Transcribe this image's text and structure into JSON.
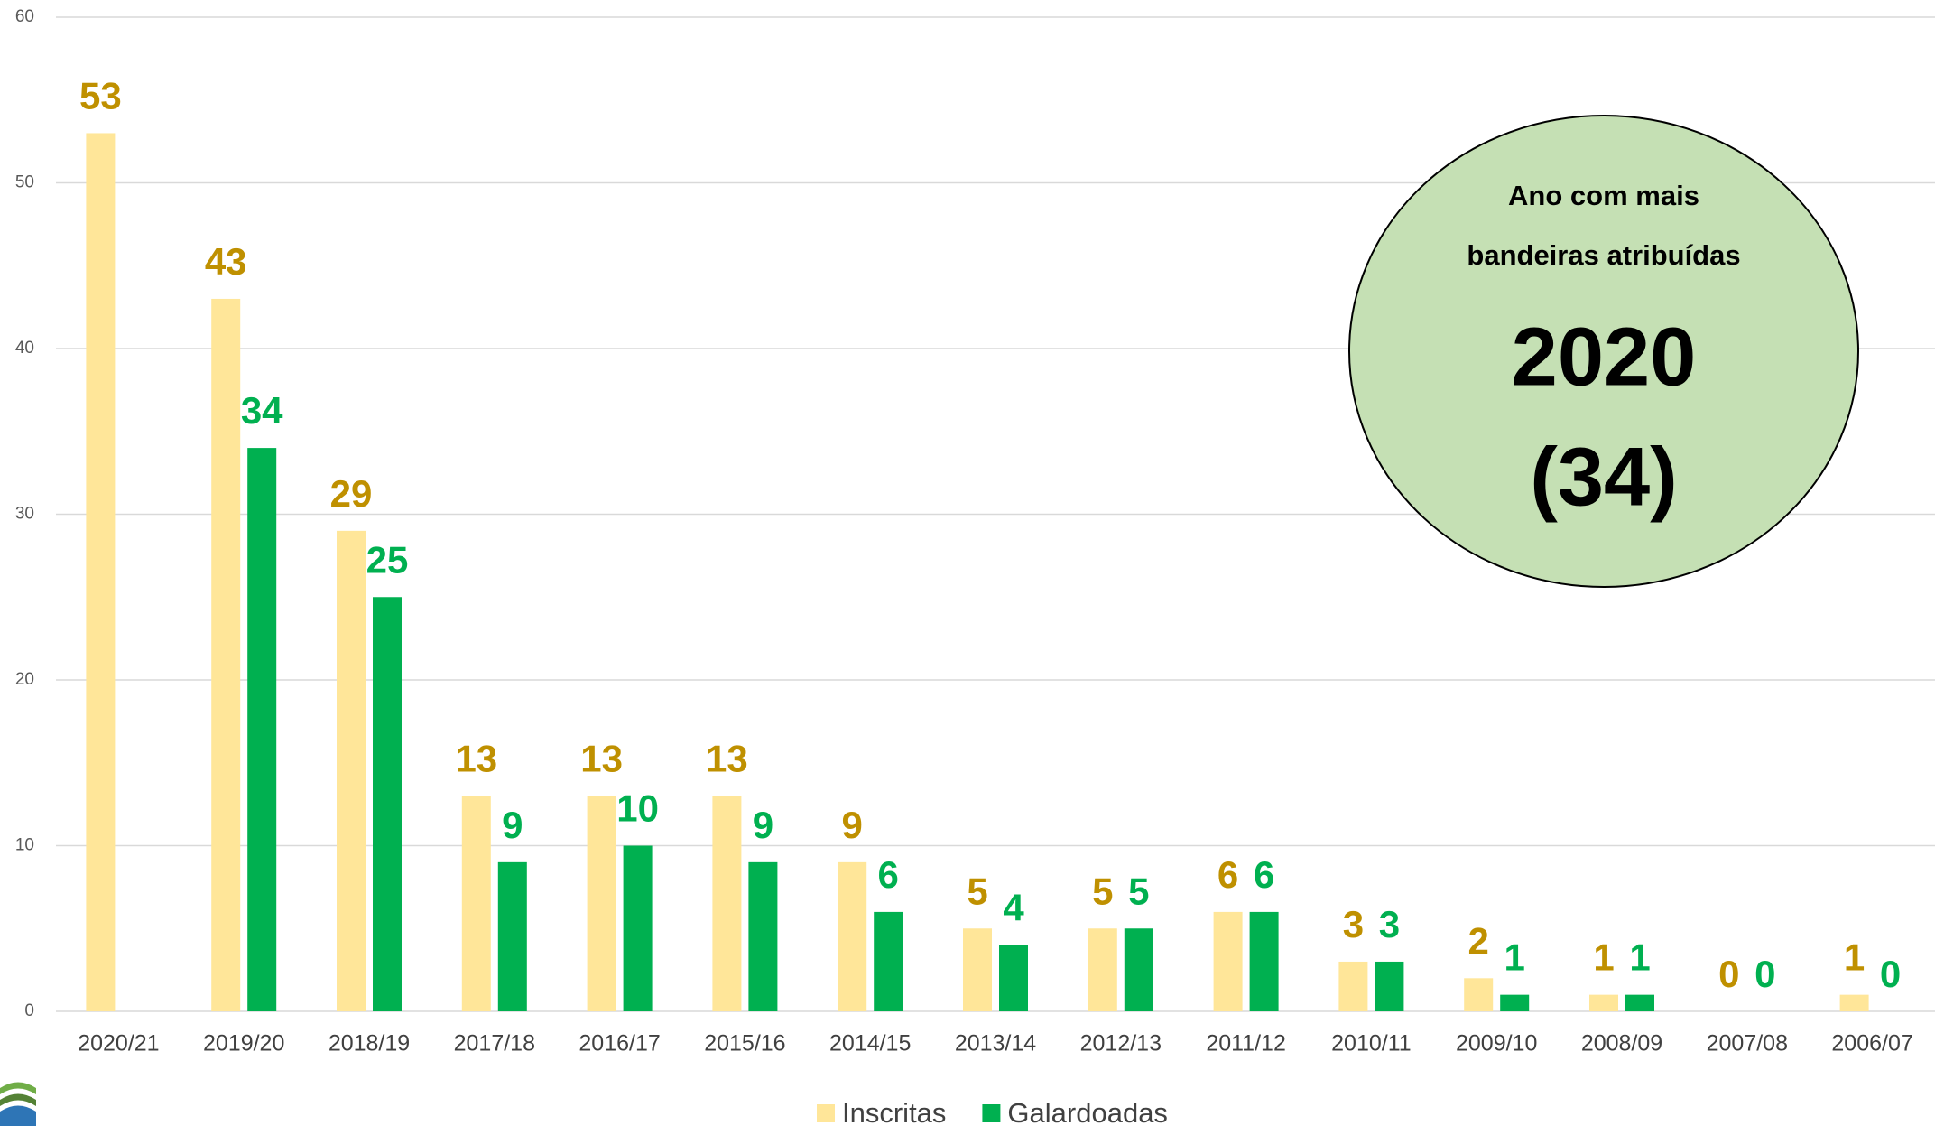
{
  "chart_data": {
    "type": "bar",
    "categories": [
      "2020/21",
      "2019/20",
      "2018/19",
      "2017/18",
      "2016/17",
      "2015/16",
      "2014/15",
      "2013/14",
      "2012/13",
      "2011/12",
      "2010/11",
      "2009/10",
      "2008/09",
      "2007/08",
      "2006/07"
    ],
    "series": [
      {
        "name": "Inscritas",
        "color": "#ffe699",
        "label_color": "#bf9000",
        "values": [
          53,
          43,
          29,
          13,
          13,
          13,
          9,
          5,
          5,
          6,
          3,
          2,
          1,
          0,
          1
        ]
      },
      {
        "name": "Galardoadas",
        "color": "#00b050",
        "label_color": "#00b050",
        "values": [
          null,
          34,
          25,
          9,
          10,
          9,
          6,
          4,
          5,
          6,
          3,
          1,
          1,
          0,
          0
        ]
      }
    ],
    "ylim": [
      0,
      60
    ],
    "yticks": [
      0,
      10,
      20,
      30,
      40,
      50,
      60
    ],
    "grid": true,
    "legend": "bottom",
    "annotation": {
      "lines": [
        "Ano com mais",
        "bandeiras atribuídas"
      ],
      "year": "2020",
      "count": "(34)",
      "color": "#c5e0b4"
    }
  }
}
